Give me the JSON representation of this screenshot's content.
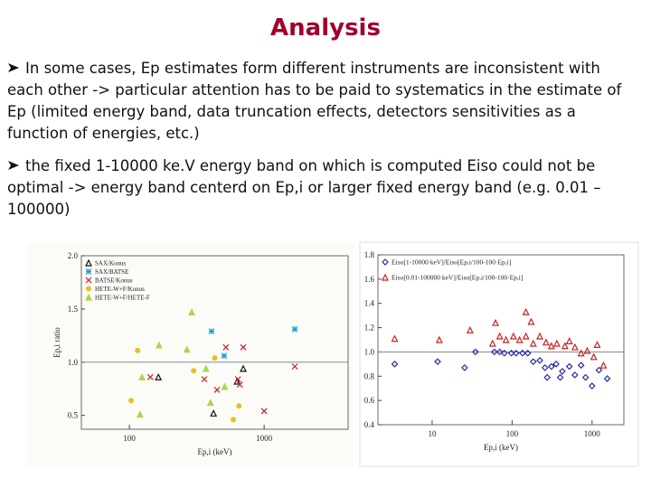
{
  "title": "Analysis",
  "bullets": [
    "In some cases, Ep estimates form different instruments are inconsistent with each other -> particular attention has to be paid to systematics in the estimate of Ep (limited energy band, data truncation effects, detectors sensitivities as a function of energies, etc.)",
    "the fixed 1-10000 ke.V energy band on which is computed Eiso could not be optimal -> energy band centerd on Ep,i or larger fixed energy band (e.g. 0.01 – 100000)"
  ],
  "chart_data": [
    {
      "type": "scatter",
      "xlabel": "Ep,i (keV)",
      "ylabel": "Ep,i ratio",
      "xscale": "log",
      "xlim": [
        44,
        4200
      ],
      "xticks": [
        100,
        1000
      ],
      "ylim": [
        0.37,
        2.0
      ],
      "yticks": [
        {
          "value": 0.5,
          "label": "0.5"
        },
        {
          "value": 1.0,
          "label": "1.0"
        },
        {
          "value": 1.5,
          "label": "1.5"
        },
        {
          "value": 2.0,
          "label": "2.0"
        }
      ],
      "reference_line": 1,
      "legend": "upper left",
      "series": [
        {
          "name": "SAX/Konus",
          "color": "#111111",
          "marker": "triangle",
          "x": [
            164,
            421,
            630,
            700
          ],
          "values": [
            0.86,
            0.52,
            0.82,
            0.94
          ]
        },
        {
          "name": "SAX/BATSE",
          "color": "#1aa0d8",
          "marker": "star",
          "x": [
            407,
            1690,
            505
          ],
          "values": [
            1.29,
            1.31,
            1.06
          ]
        },
        {
          "name": "BATSE/Konus",
          "color": "#c81e1e",
          "marker": "x",
          "x": [
            143,
            360,
            447,
            640,
            660,
            700,
            1000,
            1690,
            520
          ],
          "values": [
            0.86,
            0.84,
            0.74,
            0.84,
            0.79,
            1.14,
            0.54,
            0.96,
            1.14
          ]
        },
        {
          "name": "HETE-W+F/Konus",
          "color": "#e8c020",
          "marker": "circle",
          "x": [
            103,
            115,
            300,
            430,
            590,
            650
          ],
          "values": [
            0.64,
            1.11,
            0.92,
            1.04,
            0.46,
            0.59
          ]
        },
        {
          "name": "HETE-W+F/HETE-F",
          "color": "#a8d848",
          "marker": "triangle",
          "x": [
            124,
            166,
            267,
            290,
            370,
            400,
            510,
            120
          ],
          "values": [
            0.86,
            1.16,
            1.12,
            1.47,
            0.94,
            0.62,
            0.77,
            0.51
          ]
        }
      ]
    },
    {
      "type": "scatter",
      "xlabel": "Ep,i (keV)",
      "xscale": "log",
      "xlim": [
        2.1,
        2500
      ],
      "xticks": [
        10,
        100,
        1000
      ],
      "ylim": [
        0.4,
        1.8
      ],
      "yticks": [
        {
          "value": 0.4,
          "label": "0.4"
        },
        {
          "value": 0.6,
          "label": "0.6"
        },
        {
          "value": 0.8,
          "label": "0.8"
        },
        {
          "value": 1.0,
          "label": "1.0"
        },
        {
          "value": 1.2,
          "label": "1.2"
        },
        {
          "value": 1.4,
          "label": "1.4"
        },
        {
          "value": 1.6,
          "label": "1.6"
        },
        {
          "value": 1.8,
          "label": "1.8"
        }
      ],
      "reference_line": 1,
      "legend": "upper left",
      "series": [
        {
          "name": "Eiso[1-10000 keV]/Eiso[Ep,i/100-100·Ep,i]",
          "color": "#2a2aa8",
          "marker": "diamond",
          "x": [
            3.4,
            11.7,
            25.5,
            34.8,
            60,
            70,
            80,
            98,
            112,
            135,
            157,
            184,
            222,
            258,
            310,
            355,
            425,
            520,
            610,
            730,
            830,
            1000,
            1220,
            1550,
            275,
            400
          ],
          "values": [
            0.9,
            0.92,
            0.87,
            1.0,
            1.0,
            1.0,
            0.99,
            0.99,
            0.99,
            0.99,
            0.99,
            0.92,
            0.93,
            0.87,
            0.88,
            0.9,
            0.84,
            0.88,
            0.81,
            0.89,
            0.79,
            0.72,
            0.85,
            0.78,
            0.79,
            0.79
          ]
        },
        {
          "name": "Eiso[0.01-100000 keV]/Eiso[Ep,i/100-100·Ep,i]",
          "color": "#cc2222",
          "marker": "triangle",
          "x": [
            3.4,
            12.3,
            29.8,
            57,
            62,
            70,
            84,
            104,
            124,
            149,
            184,
            222,
            266,
            310,
            363,
            458,
            520,
            610,
            730,
            870,
            1050,
            1160,
            1390,
            149,
            173
          ],
          "values": [
            1.11,
            1.1,
            1.18,
            1.07,
            1.24,
            1.13,
            1.1,
            1.13,
            1.1,
            1.13,
            1.07,
            1.13,
            1.08,
            1.05,
            1.07,
            1.05,
            1.09,
            1.04,
            0.99,
            1.01,
            0.96,
            1.06,
            0.89,
            1.33,
            1.25
          ]
        }
      ]
    }
  ]
}
